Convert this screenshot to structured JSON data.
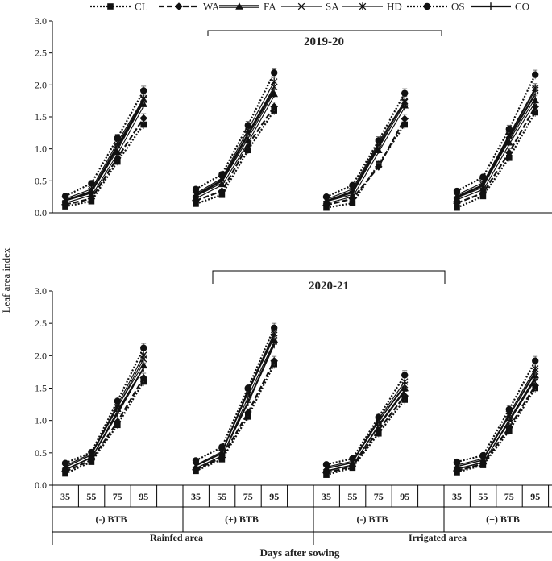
{
  "legend": [
    "CL",
    "WA",
    "FA",
    "SA",
    "HD",
    "OS",
    "CO"
  ],
  "yaxis_label": "Leaf area index",
  "xaxis_label": "Days after sowing",
  "sowing_days": [
    "35",
    "55",
    "75",
    "95"
  ],
  "btb_labels": [
    "(-) BTB",
    "(+) BTB",
    "(-) BTB",
    "(+) BTB"
  ],
  "area_labels": [
    "Rainfed area",
    "Irrigated area"
  ],
  "chart_data": [
    {
      "type": "line",
      "title": "2019-20",
      "ylim": [
        0,
        3
      ],
      "yticks": [
        "0.0",
        "0.5",
        "1.0",
        "1.5",
        "2.0",
        "2.5",
        "3.0"
      ],
      "groups": [
        "Rainfed (-) BTB",
        "Rainfed (+) BTB",
        "Irrigated (-) BTB",
        "Irrigated (+) BTB"
      ],
      "series": [
        {
          "name": "CL",
          "values": [
            [
              0.1,
              0.18,
              0.8,
              1.38
            ],
            [
              0.14,
              0.28,
              0.98,
              1.6
            ],
            [
              0.08,
              0.15,
              0.76,
              1.38
            ],
            [
              0.08,
              0.26,
              0.86,
              1.57
            ]
          ]
        },
        {
          "name": "WA",
          "values": [
            [
              0.13,
              0.22,
              0.86,
              1.48
            ],
            [
              0.19,
              0.34,
              1.06,
              1.66
            ],
            [
              0.12,
              0.22,
              0.72,
              1.47
            ],
            [
              0.15,
              0.31,
              0.94,
              1.66
            ]
          ]
        },
        {
          "name": "FA",
          "values": [
            [
              0.17,
              0.29,
              0.95,
              1.7
            ],
            [
              0.24,
              0.45,
              1.13,
              1.86
            ],
            [
              0.16,
              0.27,
              0.98,
              1.68
            ],
            [
              0.22,
              0.38,
              1.1,
              1.76
            ]
          ]
        },
        {
          "name": "SA",
          "values": [
            [
              0.2,
              0.34,
              1.06,
              1.77
            ],
            [
              0.28,
              0.52,
              1.25,
              1.97
            ],
            [
              0.19,
              0.34,
              1.07,
              1.73
            ],
            [
              0.26,
              0.44,
              1.2,
              1.92
            ]
          ]
        },
        {
          "name": "HD",
          "values": [
            [
              0.22,
              0.37,
              1.1,
              1.79
            ],
            [
              0.3,
              0.54,
              1.3,
              2.05
            ],
            [
              0.21,
              0.37,
              1.1,
              1.75
            ],
            [
              0.28,
              0.47,
              1.22,
              1.95
            ]
          ]
        },
        {
          "name": "OS",
          "values": [
            [
              0.26,
              0.46,
              1.17,
              1.91
            ],
            [
              0.37,
              0.6,
              1.37,
              2.19
            ],
            [
              0.25,
              0.43,
              1.13,
              1.87
            ],
            [
              0.34,
              0.56,
              1.31,
              2.16
            ]
          ]
        },
        {
          "name": "CO",
          "values": [
            [
              0.19,
              0.33,
              1.03,
              1.73
            ],
            [
              0.27,
              0.5,
              1.22,
              1.93
            ],
            [
              0.18,
              0.32,
              1.04,
              1.66
            ],
            [
              0.24,
              0.43,
              1.17,
              1.86
            ]
          ]
        }
      ]
    },
    {
      "type": "line",
      "title": "2020-21",
      "ylim": [
        0,
        3
      ],
      "yticks": [
        "0.0",
        "0.5",
        "1.0",
        "1.5",
        "2.0",
        "2.5",
        "3.0"
      ],
      "groups": [
        "Rainfed (-) BTB",
        "Rainfed (+) BTB",
        "Irrigated (-) BTB",
        "Irrigated (+) BTB"
      ],
      "series": [
        {
          "name": "CL",
          "values": [
            [
              0.18,
              0.36,
              0.93,
              1.6
            ],
            [
              0.22,
              0.4,
              1.06,
              1.87
            ],
            [
              0.16,
              0.27,
              0.8,
              1.32
            ],
            [
              0.2,
              0.31,
              0.84,
              1.5
            ]
          ]
        },
        {
          "name": "WA",
          "values": [
            [
              0.21,
              0.39,
              0.98,
              1.66
            ],
            [
              0.24,
              0.43,
              1.12,
              1.92
            ],
            [
              0.19,
              0.29,
              0.85,
              1.38
            ],
            [
              0.22,
              0.33,
              0.89,
              1.54
            ]
          ]
        },
        {
          "name": "FA",
          "values": [
            [
              0.26,
              0.45,
              1.18,
              1.85
            ],
            [
              0.28,
              0.47,
              1.4,
              2.25
            ],
            [
              0.24,
              0.33,
              0.96,
              1.5
            ],
            [
              0.27,
              0.37,
              1.04,
              1.7
            ]
          ]
        },
        {
          "name": "SA",
          "values": [
            [
              0.28,
              0.47,
              1.2,
              1.95
            ],
            [
              0.3,
              0.5,
              1.43,
              2.32
            ],
            [
              0.26,
              0.35,
              0.99,
              1.55
            ],
            [
              0.29,
              0.39,
              1.07,
              1.76
            ]
          ]
        },
        {
          "name": "HD",
          "values": [
            [
              0.3,
              0.49,
              1.24,
              2.01
            ],
            [
              0.31,
              0.52,
              1.46,
              2.35
            ],
            [
              0.28,
              0.37,
              1.02,
              1.6
            ],
            [
              0.31,
              0.41,
              1.1,
              1.8
            ]
          ]
        },
        {
          "name": "OS",
          "values": [
            [
              0.34,
              0.51,
              1.3,
              2.12
            ],
            [
              0.38,
              0.59,
              1.5,
              2.43
            ],
            [
              0.32,
              0.41,
              1.05,
              1.7
            ],
            [
              0.36,
              0.46,
              1.17,
              1.92
            ]
          ]
        },
        {
          "name": "CO",
          "values": [
            [
              0.24,
              0.43,
              1.11,
              1.82
            ],
            [
              0.27,
              0.46,
              1.28,
              2.18
            ],
            [
              0.22,
              0.32,
              0.92,
              1.46
            ],
            [
              0.25,
              0.36,
              0.99,
              1.64
            ]
          ]
        }
      ]
    }
  ]
}
